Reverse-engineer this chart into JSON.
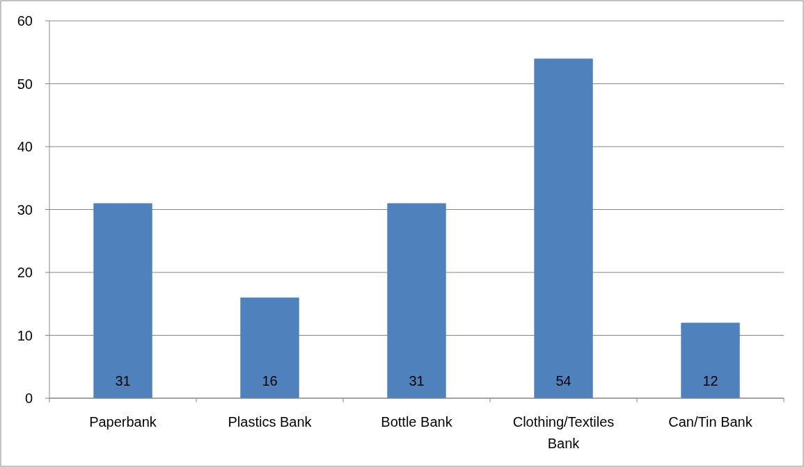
{
  "chart_data": {
    "type": "bar",
    "categories": [
      "Paperbank",
      "Plastics Bank",
      "Bottle Bank",
      "Clothing/Textiles Bank",
      "Can/Tin Bank"
    ],
    "values": [
      31,
      16,
      31,
      54,
      12
    ],
    "color": "#4f81bd",
    "ylim": [
      0,
      60
    ],
    "yticks": [
      0,
      10,
      20,
      30,
      40,
      50,
      60
    ],
    "grid": "y",
    "data_labels": true
  }
}
